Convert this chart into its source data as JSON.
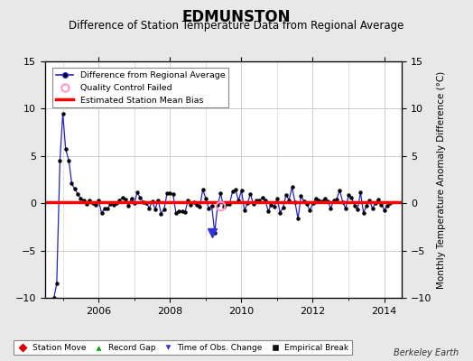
{
  "title": "EDMUNSTON",
  "subtitle": "Difference of Station Temperature Data from Regional Average",
  "ylabel": "Monthly Temperature Anomaly Difference (°C)",
  "xlim": [
    2004.5,
    2014.5
  ],
  "ylim": [
    -10,
    15
  ],
  "yticks": [
    -10,
    -5,
    0,
    5,
    10,
    15
  ],
  "xticks": [
    2006,
    2008,
    2010,
    2012,
    2014
  ],
  "bg_color": "#e8e8e8",
  "plot_bg": "#ffffff",
  "grid_color": "#cccccc",
  "line_color": "#2222cc",
  "marker_color": "#000000",
  "bias_color": "#ff0000",
  "bias_value": 0.1,
  "title_fontsize": 12,
  "subtitle_fontsize": 8.5,
  "tick_fontsize": 8,
  "watermark": "Berkeley Earth",
  "time_obs_change_x": 2009.17,
  "time_obs_change_y": -3.1,
  "qc_fail_x": 2009.42,
  "qc_fail_y": -0.25
}
